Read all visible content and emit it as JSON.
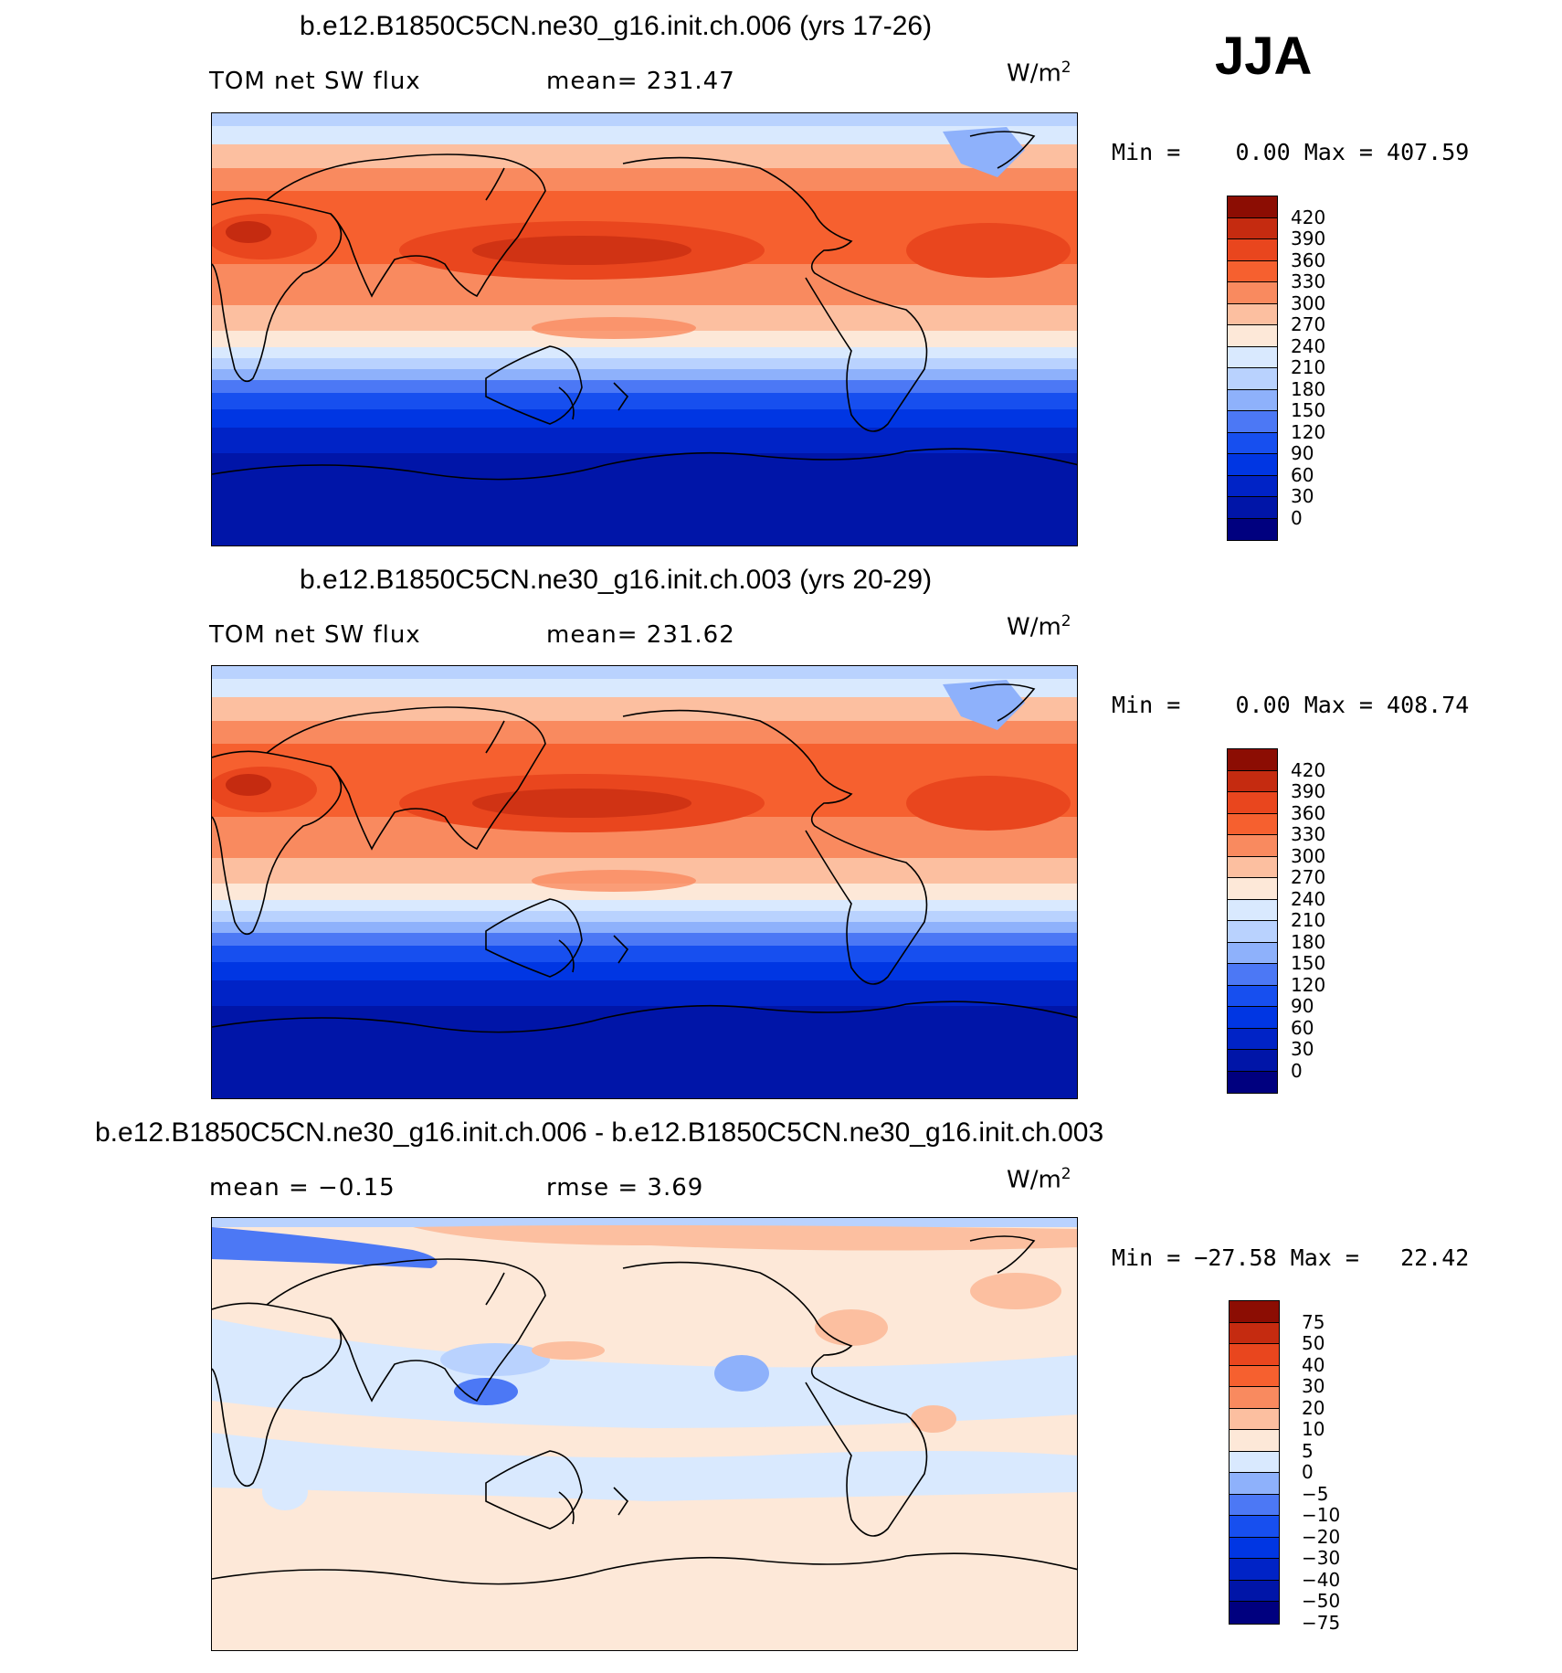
{
  "season": "JJA",
  "colors": {
    "abs": [
      "#00007f",
      "#0015a8",
      "#0023c6",
      "#0036e3",
      "#174fef",
      "#4c78f5",
      "#8eb1fb",
      "#b9d2fe",
      "#d9e9fe",
      "#fde8d8",
      "#fcbfa0",
      "#f98a5f",
      "#f6602f",
      "#e9461e",
      "#c52b10",
      "#8c0d03"
    ],
    "diff": [
      "#00007f",
      "#0015a8",
      "#0023c6",
      "#0036e3",
      "#174fef",
      "#4c78f5",
      "#8eb1fb",
      "#d9e9fe",
      "#fde8d8",
      "#fcbfa0",
      "#f98a5f",
      "#f6602f",
      "#e9461e",
      "#c52b10",
      "#8c0d03"
    ]
  },
  "panels": [
    {
      "title": "b.e12.B1850C5CN.ne30_g16.init.ch.006 (yrs 17-26)",
      "variable": "TOM net SW flux",
      "stat": "mean= 231.47",
      "units": "W/m",
      "units_exp": "2",
      "minmax": "Min =    0.00 Max = 407.59",
      "colorbar_levels": [
        "420",
        "390",
        "360",
        "330",
        "300",
        "270",
        "240",
        "210",
        "180",
        "150",
        "120",
        "90",
        "60",
        "30",
        "0"
      ],
      "palette": "abs"
    },
    {
      "title": "b.e12.B1850C5CN.ne30_g16.init.ch.003 (yrs 20-29)",
      "variable": "TOM net SW flux",
      "stat": "mean= 231.62",
      "units": "W/m",
      "units_exp": "2",
      "minmax": "Min =    0.00 Max = 408.74",
      "colorbar_levels": [
        "420",
        "390",
        "360",
        "330",
        "300",
        "270",
        "240",
        "210",
        "180",
        "150",
        "120",
        "90",
        "60",
        "30",
        "0"
      ],
      "palette": "abs"
    },
    {
      "title": "b.e12.B1850C5CN.ne30_g16.init.ch.006 - b.e12.B1850C5CN.ne30_g16.init.ch.003",
      "variable": "mean =   −0.15",
      "stat": "rmse =    3.69",
      "units": "W/m",
      "units_exp": "2",
      "minmax": "Min = −27.58 Max =   22.42",
      "colorbar_levels": [
        "75",
        "50",
        "40",
        "30",
        "20",
        "10",
        "5",
        "0",
        "−5",
        "−10",
        "−20",
        "−30",
        "−40",
        "−50",
        "−75"
      ],
      "palette": "diff"
    }
  ]
}
